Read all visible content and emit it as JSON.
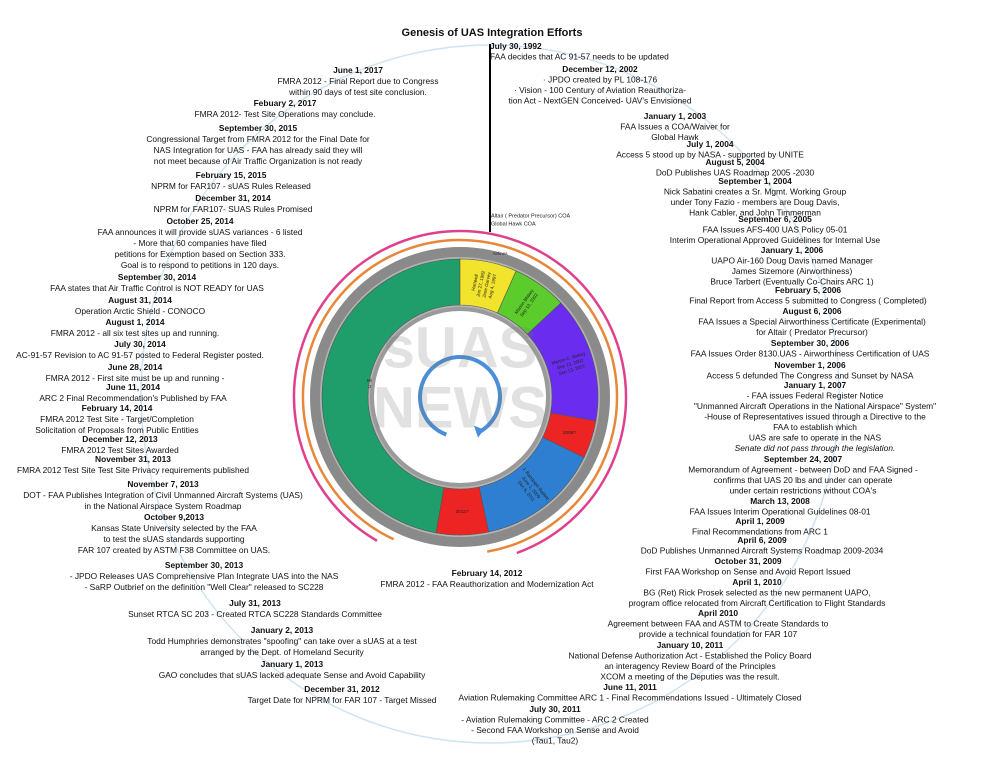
{
  "title": "Genesis of UAS Integration Efforts",
  "watermark": [
    "sUAS",
    "NEWS"
  ],
  "top_annotations": [
    "Altair ( Predator Precursor) COA",
    "Global Hawk COA"
  ],
  "ring_label": "Airlines",
  "segments": [
    {
      "lines": [
        "Michael P. Huerta",
        "January 9, 2013",
        "Present"
      ]
    },
    {
      "lines": [
        "Hartwell",
        "Jun 27, 1992",
        "Jane Garvey",
        "Aug 4, 1997"
      ]
    },
    {
      "lines": [
        "Marion Blakey",
        "Sep 13, 2002"
      ]
    },
    {
      "lines": [
        "Marion C. Blakey",
        "Sep 13, 2002",
        "Sep 13, 2007"
      ]
    },
    {
      "lines": [
        "2008?"
      ]
    },
    {
      "lines": [
        "J. Randolph Babbitt",
        "June 1, 2009",
        "Dec 6, 2011"
      ]
    },
    {
      "lines": [
        "2012?"
      ]
    }
  ],
  "center_event": {
    "date": "February 14, 2012",
    "lines": [
      "FMRA 2012 - FAA Reauthorization and Modernization Act"
    ]
  },
  "timeline_right": [
    {
      "date": "July 30, 1992",
      "lines": [
        "FAA decides that AC 91-57 needs to be updated"
      ]
    },
    {
      "date": "December 12, 2002",
      "lines": [
        "· JPDO created by PL 108-176",
        "· Vision - 100 Century of Aviation Reauthoriza-",
        "tion Act - NextGEN Conceived- UAV's Envisioned"
      ]
    },
    {
      "date": "January 1, 2003",
      "lines": [
        "FAA Issues a COA/Waiver for",
        "Global Hawk"
      ]
    },
    {
      "date": "July 1, 2004",
      "lines": [
        "Access 5 stood up by NASA - supported by UNITE"
      ]
    },
    {
      "date": "August 5, 2004",
      "lines": [
        "DoD Publishes UAS Roadmap 2005 -2030"
      ]
    },
    {
      "date": "September 1, 2004",
      "lines": [
        "Nick Sabatini creates a Sr. Mgmt. Working Group",
        "under Tony Fazio - members are Doug Davis,",
        "Hank Cabler, and John Timmerman"
      ]
    },
    {
      "date": "September 6, 2005",
      "lines": [
        "FAA Issues AFS-400 UAS Policy 05-01",
        "Interim Operational Approved Guidelines for Internal Use"
      ]
    },
    {
      "date": "January 1, 2006",
      "lines": [
        "UAPO Air-160 Doug Davis named Manager",
        "James Sizemore (Airworthiness)",
        "Bruce Tarbert (Eventually Co-Chairs ARC 1)"
      ]
    },
    {
      "date": "February 5, 2006",
      "lines": [
        "Final Report from Access 5 submitted to Congress ( Completed)"
      ]
    },
    {
      "date": "August 6, 2006",
      "lines": [
        "FAA Issues a Special Airworthiness Certificate (Experimental)",
        "for Altair ( Predator Precursor)"
      ]
    },
    {
      "date": "September 30, 2006",
      "lines": [
        "FAA Issues Order 8130.UAS - Airworthiness Certification of UAS"
      ]
    },
    {
      "date": "November 1, 2006",
      "lines": [
        "Access 5 defunded The Congress and Sunset by NASA"
      ]
    },
    {
      "date": "January 1, 2007",
      "lines": [
        "- FAA issues Federal Register Notice",
        "\"Unmanned Aircraft Operations in the National Airspace\" System\"",
        "-House of Representatives issued through a Directive to the",
        "FAA to establish which",
        "UAS are safe to operate in the NAS",
        "Senate did not pass through the legislation."
      ]
    },
    {
      "date": "September 24, 2007",
      "lines": [
        "Memorandum of Agreement - between DoD and FAA Signed -",
        "confirms that UAS 20 lbs and under can operate",
        "under certain restrictions without COA's"
      ]
    },
    {
      "date": "March 13, 2008",
      "lines": [
        "FAA Issues Interim Operational Guidelines 08-01"
      ]
    },
    {
      "date": "April 1, 2009",
      "lines": [
        "Final Recommendations from ARC 1"
      ]
    },
    {
      "date": "April 6, 2009",
      "lines": [
        "DoD Publishes Unmanned Aircraft Systems Roadmap 2009-2034"
      ]
    },
    {
      "date": "October 31, 2009",
      "lines": [
        "First FAA Workshop on Sense and Avoid Report Issued"
      ]
    },
    {
      "date": "April 1, 2010",
      "lines": [
        "BG (Ret) Rick Prosek selected as the new permanent UAPO,",
        "program office relocated from Aircraft Certification to Flight Standards"
      ]
    },
    {
      "date": "April 2010",
      "lines": [
        "Agreement between FAA and ASTM to Create Standards to",
        "provide a technical foundation for FAR 107"
      ]
    },
    {
      "date": "January 10, 2011",
      "lines": [
        "National Defense Authorization Act - Established the Policy Board",
        "an interagency Review Board of the Principles",
        "XCOM a meeting of the Deputies was the result."
      ]
    },
    {
      "date": "June 11, 2011",
      "lines": [
        "Aviation Rulemaking Committee ARC 1 - Final Recommendations Issued - Ultimately Closed"
      ]
    },
    {
      "date": "July 30, 2011",
      "lines": [
        "- Aviation Rulemaking Committee - ARC 2 Created",
        "- Second FAA Workshop on Sense and Avoid",
        "(Tau1, Tau2)"
      ]
    }
  ],
  "timeline_left": [
    {
      "date": "June 1, 2017",
      "lines": [
        "FMRA 2012 - Final Report due to Congress",
        "within 90 days of test site conclusion."
      ]
    },
    {
      "date": "Febuary 2, 2017",
      "lines": [
        "FMRA 2012- Test Site Operations may conclude."
      ]
    },
    {
      "date": "September 30, 2015",
      "lines": [
        "Congressional Target from FMRA 2012 for the Final Date for",
        "NAS Integration for UAS - FAA has already said they will",
        "not meet because of Air Traffic Organization is not ready"
      ]
    },
    {
      "date": "February 15, 2015",
      "lines": [
        "NPRM for FAR107 - sUAS Rules Released"
      ]
    },
    {
      "date": "December 31, 2014",
      "lines": [
        "NPRM for FAR107- SUAS Rules Promised"
      ]
    },
    {
      "date": "October 25, 2014",
      "lines": [
        "FAA announces it will provide sUAS variances - 6 listed",
        "- More that 60 companies have filed",
        "petitions for Exemption based on Section 333.",
        "Goal is to respond to petitions in 120 days."
      ]
    },
    {
      "date": "September 30, 2014",
      "lines": [
        "FAA states that Air Traffic Control is NOT READY for UAS"
      ]
    },
    {
      "date": "August 31, 2014",
      "lines": [
        "Operation Arctic Shield - CONOCO"
      ]
    },
    {
      "date": "August 1, 2014",
      "lines": [
        "FMRA 2012 - all six test sites up and running."
      ]
    },
    {
      "date": "July 30, 2014",
      "lines": [
        "AC-91-57 Revision to AC 91-57 posted to Federal Register posted."
      ]
    },
    {
      "date": "June 28, 2014",
      "lines": [
        "FMRA 2012 - First site must be up and running -"
      ]
    },
    {
      "date": "June 11, 2014",
      "lines": [
        "ARC 2 Final Recommendation's Published by FAA"
      ]
    },
    {
      "date": "February 14, 2014",
      "lines": [
        "FMRA 2012 Test Site - Target/Completion",
        "Solicitation of Proposals from Public Entities"
      ]
    },
    {
      "date": "December 12, 2013",
      "lines": [
        "FMRA 2012 Test Sites Awarded"
      ]
    },
    {
      "date": "November 31, 2013",
      "lines": [
        "FMRA 2012 Test Site Test Site Privacy requirements published"
      ]
    },
    {
      "date": "November 7, 2013",
      "lines": [
        "DOT - FAA Publishes Integration of Civil Unmanned Aircraft Systems (UAS)",
        "in the National Airspace System Roadmap"
      ]
    },
    {
      "date": "October 9,2013",
      "lines": [
        "Kansas State University selected by the FAA",
        "to test the sUAS standards supporting",
        "FAR 107 created by ASTM F38 Committee on UAS."
      ]
    },
    {
      "date": "September 30, 2013",
      "lines": [
        "- JPDO Releases UAS Comprehensive Plan Integrate UAS into the NAS",
        "- SaRP Outbrief on the definition \"Well Clear\" released to SC228"
      ]
    },
    {
      "date": "July 31, 2013",
      "lines": [
        "Sunset RTCA SC 203 - Created RTCA SC228 Standards Committee"
      ]
    },
    {
      "date": "January 2, 2013",
      "lines": [
        "Todd Humphries demonstrates \"spoofing\" can take over a sUAS at a test",
        "arranged by the Dept. of Homeland Security"
      ]
    },
    {
      "date": "January 1,  2013",
      "lines": [
        "GAO concludes that sUAS lacked adequate Sense and Avoid Capability"
      ]
    },
    {
      "date": "December 31, 2012",
      "lines": [
        "Target Date for NPRM for FAR 107 - Target Missed"
      ]
    }
  ]
}
